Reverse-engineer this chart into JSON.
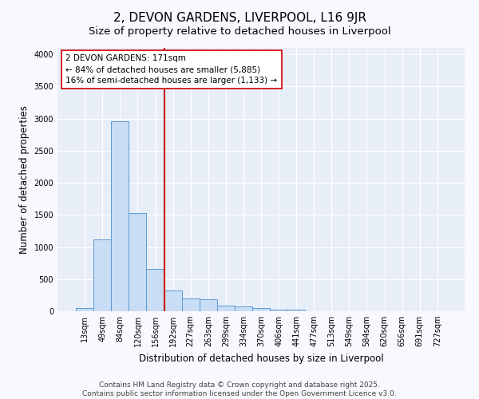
{
  "title": "2, DEVON GARDENS, LIVERPOOL, L16 9JR",
  "subtitle": "Size of property relative to detached houses in Liverpool",
  "xlabel": "Distribution of detached houses by size in Liverpool",
  "ylabel": "Number of detached properties",
  "footer_line1": "Contains HM Land Registry data © Crown copyright and database right 2025.",
  "footer_line2": "Contains public sector information licensed under the Open Government Licence v3.0.",
  "categories": [
    "13sqm",
    "49sqm",
    "84sqm",
    "120sqm",
    "156sqm",
    "192sqm",
    "227sqm",
    "263sqm",
    "299sqm",
    "334sqm",
    "370sqm",
    "406sqm",
    "441sqm",
    "477sqm",
    "513sqm",
    "549sqm",
    "584sqm",
    "620sqm",
    "656sqm",
    "691sqm",
    "727sqm"
  ],
  "values": [
    55,
    1120,
    2960,
    1530,
    660,
    325,
    195,
    185,
    90,
    75,
    50,
    30,
    30,
    5,
    3,
    2,
    1,
    1,
    1,
    0,
    0
  ],
  "bar_color": "#c9ddf5",
  "bar_edge_color": "#5b9bd5",
  "vline_x_index": 4.5,
  "vline_color": "#cc0000",
  "annotation_text": "2 DEVON GARDENS: 171sqm\n← 84% of detached houses are smaller (5,885)\n16% of semi-detached houses are larger (1,133) →",
  "annotation_box_facecolor": "white",
  "annotation_box_edgecolor": "#cc0000",
  "ylim": [
    0,
    4100
  ],
  "yticks": [
    0,
    500,
    1000,
    1500,
    2000,
    2500,
    3000,
    3500,
    4000
  ],
  "fig_bg_color": "#f8f8ff",
  "plot_bg_color": "#e8eef8",
  "grid_color": "#ffffff",
  "title_fontsize": 11,
  "subtitle_fontsize": 9.5,
  "axis_label_fontsize": 8.5,
  "tick_fontsize": 7,
  "annotation_fontsize": 7.5,
  "footer_fontsize": 6.5
}
